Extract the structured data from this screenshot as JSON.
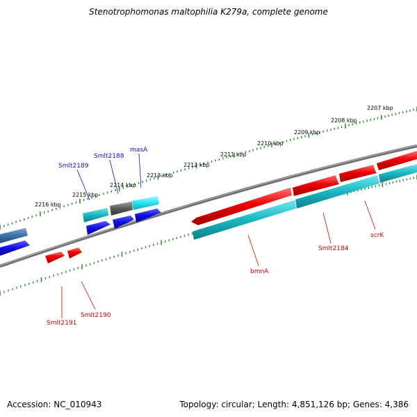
{
  "title": "Stenotrophomonas maltophilia K279a, complete genome",
  "footer": {
    "accession": "Accession: NC_010943",
    "summary": "Topology: circular; Length: 4,851,126 bp; Genes: 4,386"
  },
  "colors": {
    "backbone": "#777777",
    "tick": "#2e8b2e",
    "forward_gene": "#e00000",
    "reverse_gene": "#11b8c4",
    "cds_blue": "#1010e0",
    "gene_gray": "#5a5a5a",
    "gene_cyan": "#29e3f0",
    "gene_steel": "#3d6fa8",
    "label_blue": "#1010c8",
    "label_red": "#cc0000"
  },
  "kbp_labels": [
    "2207 kbp",
    "2208 kbp",
    "2209 kbp",
    "2210 kbp",
    "2211 kbp",
    "2212 kbp",
    "2213 kbp",
    "2214 kbp",
    "2215 kbp",
    "2216 kbp"
  ],
  "gene_labels": {
    "smlt2189": "Smlt2189",
    "smlt2188": "Smlt2188",
    "masA": "masA",
    "smlt2191": "Smlt2191",
    "smlt2190": "Smlt2190",
    "bmnA": "bmnA",
    "smlt2184": "Smlt2184",
    "scrK": "scrK"
  }
}
